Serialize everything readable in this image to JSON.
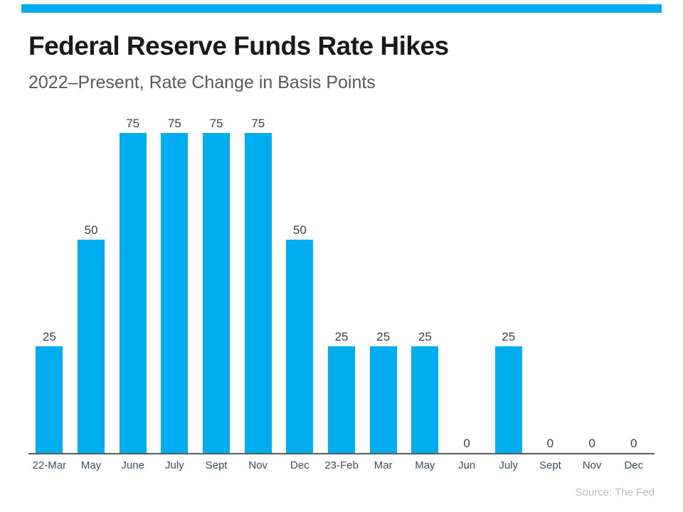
{
  "page": {
    "title": "Federal Reserve Funds Rate Hikes",
    "subtitle": "2022–Present, Rate Change in Basis Points",
    "source": "Source: The Fed"
  },
  "theme": {
    "accent": "#00AEEF",
    "title_color": "#1a1a1a",
    "subtitle_color": "#595959",
    "value_label_color": "#404040",
    "category_label_color": "#3d4f5c",
    "axis_line_color": "#58595b",
    "source_color": "#bdbdbd"
  },
  "chart_data": {
    "type": "bar",
    "title": "Federal Reserve Funds Rate Hikes",
    "subtitle": "2022–Present, Rate Change in Basis Points",
    "categories": [
      "22-Mar",
      "May",
      "June",
      "July",
      "Sept",
      "Nov",
      "Dec",
      "23-Feb",
      "Mar",
      "May",
      "Jun",
      "July",
      "Sept",
      "Nov",
      "Dec"
    ],
    "values": [
      25,
      50,
      75,
      75,
      75,
      75,
      50,
      25,
      25,
      25,
      0,
      25,
      0,
      0,
      0
    ],
    "xlabel": "",
    "ylabel": "Rate Change in Basis Points",
    "ylim": [
      0,
      75
    ],
    "bar_color": "#00AEEF",
    "grid": false,
    "legend": false,
    "data_labels": true,
    "source": "Source: The Fed"
  }
}
